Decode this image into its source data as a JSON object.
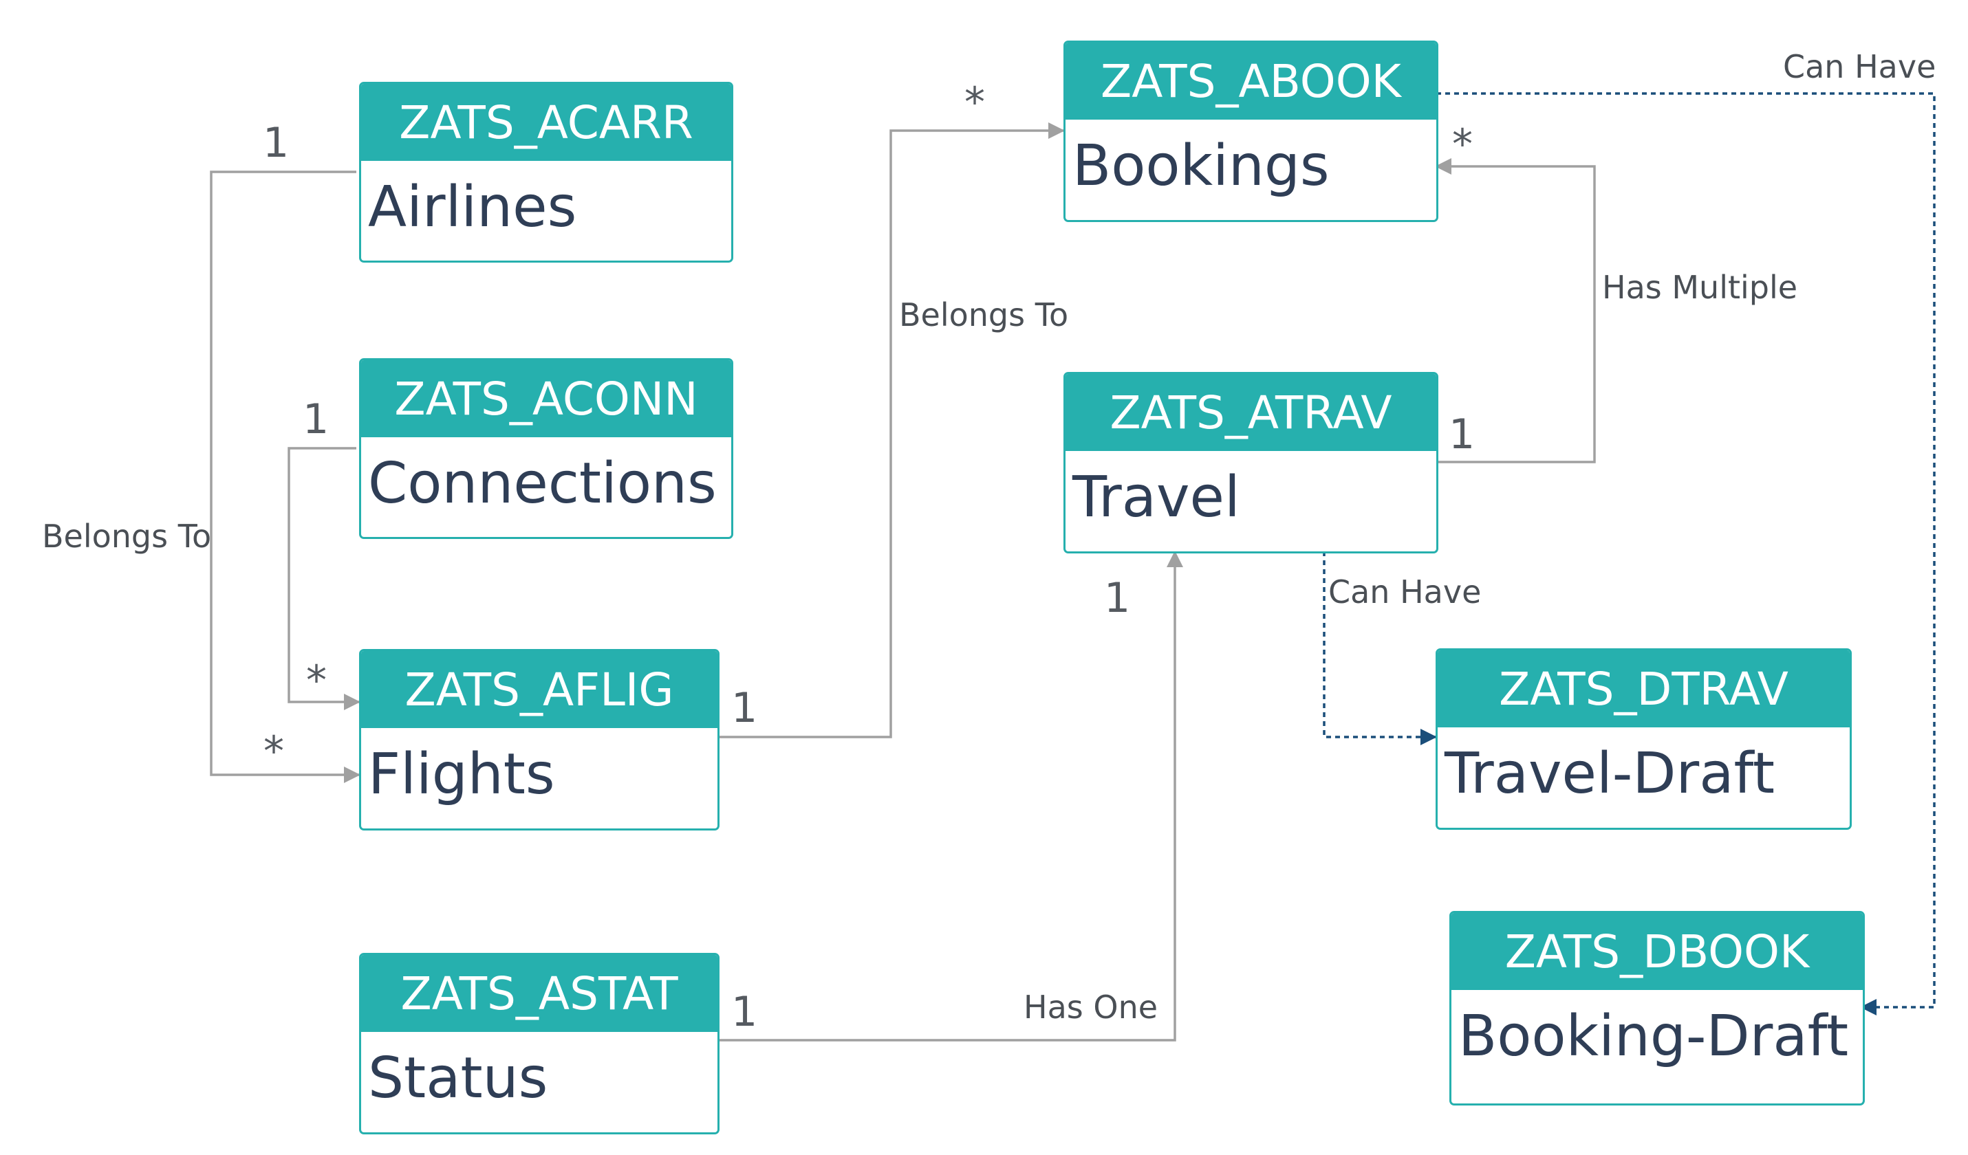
{
  "colors": {
    "header": "#26b0ae",
    "body_text": "#2f3e56",
    "solid_line": "#a0a0a0",
    "dashed_line": "#1a4e7a"
  },
  "entities": {
    "acarr": {
      "id": "ZATS_ACARR",
      "name": "Airlines"
    },
    "aconn": {
      "id": "ZATS_ACONN",
      "name": "Connections"
    },
    "aflig": {
      "id": "ZATS_AFLIG",
      "name": "Flights"
    },
    "astat": {
      "id": "ZATS_ASTAT",
      "name": "Status"
    },
    "abook": {
      "id": "ZATS_ABOOK",
      "name": "Bookings"
    },
    "atrav": {
      "id": "ZATS_ATRAV",
      "name": "Travel"
    },
    "dtrav": {
      "id": "ZATS_DTRAV",
      "name": "Travel-Draft"
    },
    "dbook": {
      "id": "ZATS_DBOOK",
      "name": "Booking-Draft"
    }
  },
  "relations": {
    "airlines_flights": {
      "label": "Belongs To",
      "from_card": "1",
      "to_card": "*"
    },
    "connections_flights": {
      "from_card": "1",
      "to_card": "*"
    },
    "flights_bookings": {
      "label": "Belongs To",
      "from_card": "1",
      "to_card": "*"
    },
    "travel_bookings": {
      "label": "Has Multiple",
      "from_card": "1",
      "to_card": "*"
    },
    "status_travel": {
      "label": "Has One",
      "from_card": "1",
      "to_card": "1"
    },
    "travel_draft": {
      "label": "Can Have"
    },
    "booking_draft": {
      "label": "Can Have"
    }
  }
}
